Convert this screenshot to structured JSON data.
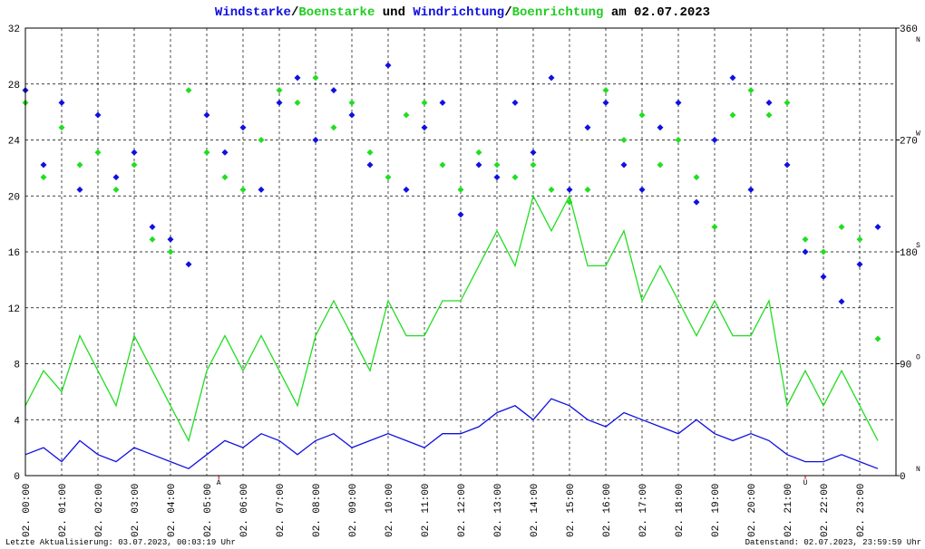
{
  "chart_data": {
    "type": "line",
    "title_parts": [
      {
        "text": "Windstarke",
        "color": "#1010e0"
      },
      {
        "text": "/",
        "color": "#000000"
      },
      {
        "text": "Boenstarke",
        "color": "#22cc22"
      },
      {
        "text": " und ",
        "color": "#000000"
      },
      {
        "text": "Windrichtung",
        "color": "#1010e0"
      },
      {
        "text": "/",
        "color": "#000000"
      },
      {
        "text": "Boenrichtung",
        "color": "#22cc22"
      },
      {
        "text": " am 02.07.2023",
        "color": "#000000"
      }
    ],
    "xlim": [
      0,
      24
    ],
    "xticks": [
      {
        "value": 0,
        "label": "02. 00:00"
      },
      {
        "value": 1,
        "label": "02. 01:00"
      },
      {
        "value": 2,
        "label": "02. 02:00"
      },
      {
        "value": 3,
        "label": "02. 03:00"
      },
      {
        "value": 4,
        "label": "02. 04:00"
      },
      {
        "value": 5,
        "label": "02. 05:00"
      },
      {
        "value": 6,
        "label": "02. 06:00"
      },
      {
        "value": 7,
        "label": "02. 07:00"
      },
      {
        "value": 8,
        "label": "02. 08:00"
      },
      {
        "value": 9,
        "label": "02. 09:00"
      },
      {
        "value": 10,
        "label": "02. 10:00"
      },
      {
        "value": 11,
        "label": "02. 11:00"
      },
      {
        "value": 12,
        "label": "02. 12:00"
      },
      {
        "value": 13,
        "label": "02. 13:00"
      },
      {
        "value": 14,
        "label": "02. 14:00"
      },
      {
        "value": 15,
        "label": "02. 15:00"
      },
      {
        "value": 16,
        "label": "02. 16:00"
      },
      {
        "value": 17,
        "label": "02. 17:00"
      },
      {
        "value": 18,
        "label": "02. 18:00"
      },
      {
        "value": 19,
        "label": "02. 19:00"
      },
      {
        "value": 20,
        "label": "02. 20:00"
      },
      {
        "value": 21,
        "label": "02. 21:00"
      },
      {
        "value": 22,
        "label": "02. 22:00"
      },
      {
        "value": 23,
        "label": "02. 23:00"
      }
    ],
    "ylim": [
      0,
      32
    ],
    "yticks": [
      0,
      4,
      8,
      12,
      16,
      20,
      24,
      28,
      32
    ],
    "y2lim": [
      0,
      360
    ],
    "y2ticks": [
      0,
      90,
      180,
      270,
      360
    ],
    "y2tick_directions": [
      "N",
      "O",
      "S",
      "W",
      "N"
    ],
    "grid": true,
    "annotations": [
      {
        "x": 5.33,
        "text": "A",
        "color": "#cc0000"
      },
      {
        "x": 21.5,
        "text": "U",
        "color": "#cc0000"
      }
    ],
    "x": [
      0,
      0.5,
      1,
      1.5,
      2,
      2.5,
      3,
      3.5,
      4,
      4.5,
      5,
      5.5,
      6,
      6.5,
      7,
      7.5,
      8,
      8.5,
      9,
      9.5,
      10,
      10.5,
      11,
      11.5,
      12,
      12.5,
      13,
      13.5,
      14,
      14.5,
      15,
      15.5,
      16,
      16.5,
      17,
      17.5,
      18,
      18.5,
      19,
      19.5,
      20,
      20.5,
      21,
      21.5,
      22,
      22.5,
      23,
      23.5
    ],
    "series": [
      {
        "name": "Boenstarke",
        "type": "line",
        "color": "#22dd22",
        "values": [
          5,
          7.5,
          6,
          10,
          7.5,
          5,
          10,
          7.5,
          5,
          2.5,
          7.5,
          10,
          7.5,
          10,
          7.5,
          5,
          10,
          12.5,
          10,
          7.5,
          12.5,
          10,
          10,
          12.5,
          12.5,
          15,
          17.5,
          15,
          20,
          17.5,
          20,
          15,
          15,
          17.5,
          12.5,
          15,
          12.5,
          10,
          12.5,
          10,
          10,
          12.5,
          5,
          7.5,
          5,
          7.5,
          5,
          2.5
        ]
      },
      {
        "name": "Windstarke",
        "type": "line",
        "color": "#1010e0",
        "values": [
          1.5,
          2,
          1,
          2.5,
          1.5,
          1,
          2,
          1.5,
          1,
          0.5,
          1.5,
          2.5,
          2,
          3,
          2.5,
          1.5,
          2.5,
          3,
          2,
          2.5,
          3,
          2.5,
          2,
          3,
          3,
          3.5,
          4.5,
          5,
          4,
          5.5,
          5,
          4,
          3.5,
          4.5,
          4,
          3.5,
          3,
          4,
          3,
          2.5,
          3,
          2.5,
          1.5,
          1,
          1,
          1.5,
          1,
          0.5
        ]
      },
      {
        "name": "Windrichtung",
        "type": "scatter",
        "axis": "y2",
        "color": "#1010e0",
        "values": [
          310,
          250,
          300,
          230,
          290,
          240,
          260,
          200,
          190,
          170,
          290,
          260,
          280,
          230,
          300,
          320,
          270,
          310,
          290,
          250,
          330,
          230,
          280,
          300,
          210,
          250,
          240,
          300,
          260,
          320,
          230,
          280,
          300,
          250,
          230,
          280,
          300,
          220,
          270,
          320,
          230,
          300,
          250,
          180,
          160,
          140,
          170,
          200
        ]
      },
      {
        "name": "Boenrichtung",
        "type": "scatter",
        "axis": "y2",
        "color": "#22dd22",
        "values": [
          300,
          240,
          280,
          250,
          260,
          230,
          250,
          190,
          180,
          310,
          260,
          240,
          230,
          270,
          310,
          300,
          320,
          280,
          300,
          260,
          240,
          290,
          300,
          250,
          230,
          260,
          250,
          240,
          250,
          230,
          220,
          230,
          310,
          270,
          290,
          250,
          270,
          240,
          200,
          290,
          310,
          290,
          300,
          190,
          180,
          200,
          190,
          110
        ]
      }
    ],
    "footer_left": "Letzte Aktualisierung: 03.07.2023, 00:03:19 Uhr",
    "footer_right": "Datenstand: 02.07.2023, 23:59:59 Uhr"
  }
}
